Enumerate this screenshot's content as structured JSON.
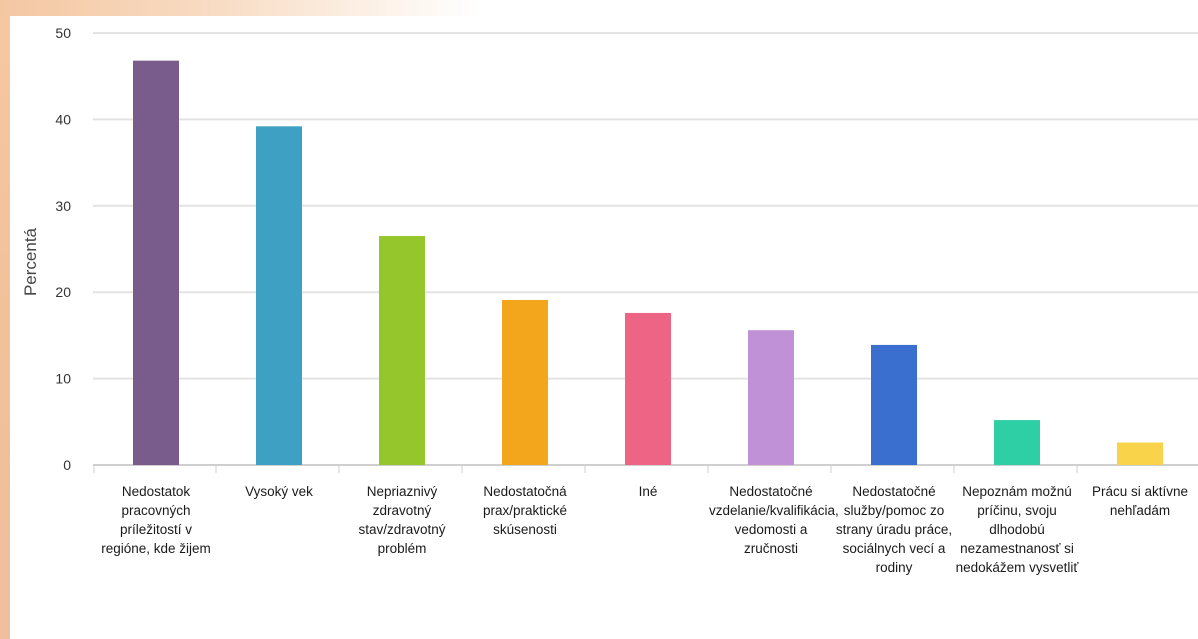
{
  "chart_data": {
    "type": "bar",
    "ylabel": "Percentá",
    "xlabel": "",
    "ylim": [
      0,
      50
    ],
    "yticks": [
      0,
      10,
      20,
      30,
      40,
      50
    ],
    "grid": true,
    "categories": [
      "Nedostatok pracovných príležitostí v regióne, kde žijem",
      "Vysoký vek",
      "Nepriaznivý zdravotný stav/zdravotný problém",
      "Nedostatočná prax/praktické skúsenosti",
      "Iné",
      "Nedostatočné vzdelanie/kvalifikácia, vedomosti a zručnosti",
      "Nedostatočné služby/pomoc zo strany úradu práce, sociálnych vecí a rodiny",
      "Nepoznám možnú príčinu, svoju dlhodobú nezamestnanosť si nedokážem vysvetliť",
      "Prácu si aktívne nehľadám"
    ],
    "values": [
      46.8,
      39.2,
      26.5,
      19.1,
      17.6,
      15.6,
      13.9,
      5.2,
      2.6
    ],
    "colors": [
      "#7a5c8c",
      "#3ea1c4",
      "#95c72d",
      "#f3a51b",
      "#ee6484",
      "#c191d7",
      "#3a6fcf",
      "#2ecfa5",
      "#f9d34a"
    ]
  }
}
